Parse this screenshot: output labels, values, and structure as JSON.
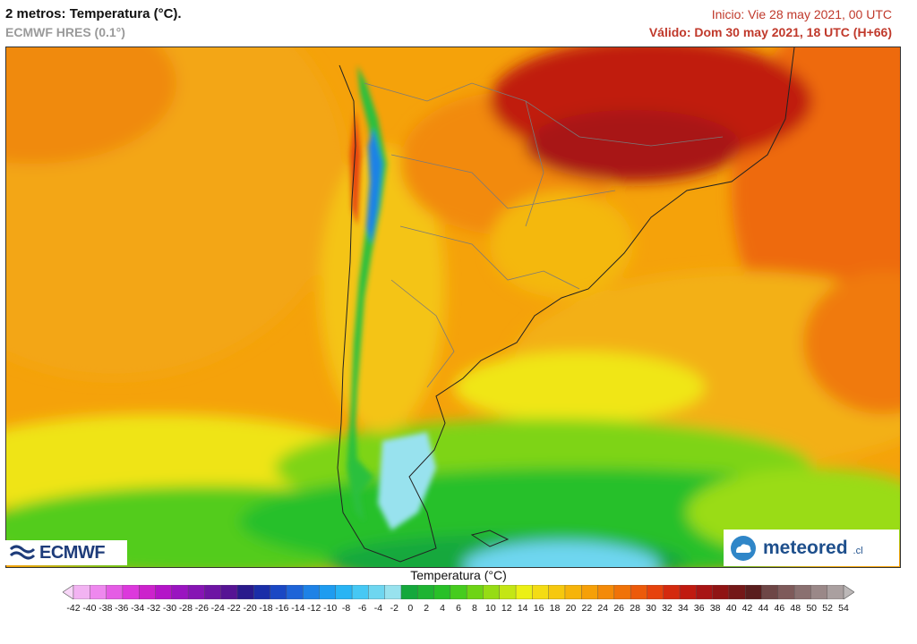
{
  "header": {
    "title": "2 metros: Temperatura (°C).",
    "model": "ECMWF HRES (0.1°)",
    "init": "Inicio: Vie 28 may 2021, 00 UTC",
    "valid": "Válido: Dom 30 may 2021, 18 UTC (H+66)"
  },
  "logos": {
    "left": "ECMWF",
    "right": "meteored",
    "right_suffix": ".cl"
  },
  "legend": {
    "title": "Temperatura (°C)",
    "labels": [
      "-42",
      "-40",
      "-38",
      "-36",
      "-34",
      "-32",
      "-30",
      "-28",
      "-26",
      "-24",
      "-22",
      "-20",
      "-18",
      "-16",
      "-14",
      "-12",
      "-10",
      "-8",
      "-6",
      "-4",
      "-2",
      "0",
      "2",
      "4",
      "6",
      "8",
      "10",
      "12",
      "14",
      "16",
      "18",
      "20",
      "22",
      "24",
      "26",
      "28",
      "30",
      "32",
      "34",
      "36",
      "38",
      "40",
      "42",
      "44",
      "46",
      "48",
      "50",
      "52",
      "54"
    ],
    "colors": [
      "#f7d6f7",
      "#f2b3f2",
      "#ee88ee",
      "#e55ce5",
      "#dc38dc",
      "#cc22cc",
      "#b414c8",
      "#9a14c0",
      "#8614b4",
      "#6e14a4",
      "#561494",
      "#2a1a8c",
      "#1a2ea8",
      "#1a48c4",
      "#1e64d8",
      "#1e82e6",
      "#1e9cf0",
      "#28b4f4",
      "#46c8f4",
      "#6ed6f0",
      "#98e2ee",
      "#14a83c",
      "#1eb432",
      "#28c028",
      "#46cc1e",
      "#6ed414",
      "#96dc14",
      "#c4e614",
      "#ecf014",
      "#f4dc14",
      "#f6c80e",
      "#f6b40a",
      "#f6a008",
      "#f48a08",
      "#f07208",
      "#ec5a0a",
      "#e6420c",
      "#d42a0e",
      "#c01a10",
      "#a81414",
      "#901414",
      "#741818",
      "#5a1e1e",
      "#6e4646",
      "#7e5a5a",
      "#8a7070",
      "#9a8888",
      "#aaa0a0",
      "#bcb8b8"
    ]
  }
}
